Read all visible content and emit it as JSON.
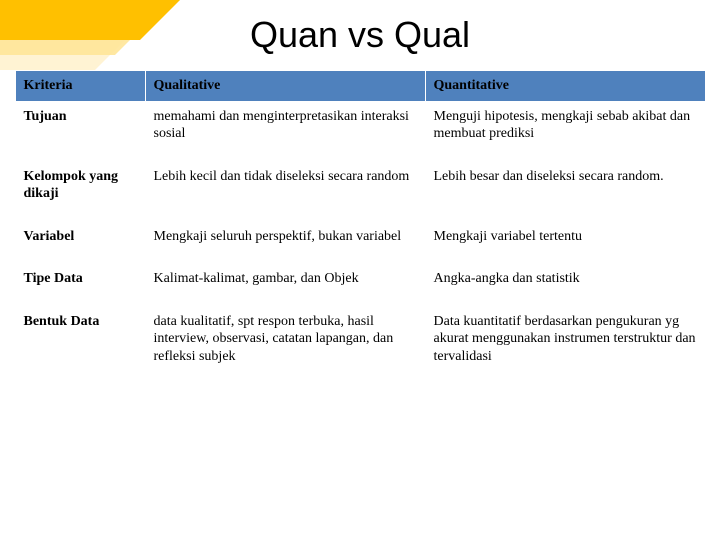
{
  "title": "Quan vs Qual",
  "table": {
    "headers": [
      "Kriteria",
      "Qualitative",
      "Quantitative"
    ],
    "rows": [
      {
        "k": "Tujuan",
        "qual": "memahami dan menginterpretasikan interaksi  sosial",
        "quan": "Menguji hipotesis, mengkaji sebab akibat dan membuat prediksi"
      },
      {
        "k": "Kelompok yang dikaji",
        "qual": "Lebih kecil dan tidak diseleksi secara random",
        "quan": "Lebih besar dan diseleksi secara random."
      },
      {
        "k": "Variabel",
        "qual": "Mengkaji seluruh perspektif, bukan variabel",
        "quan": "Mengkaji variabel tertentu"
      },
      {
        "k": "Tipe  Data",
        "qual": "Kalimat-kalimat, gambar, dan Objek",
        "quan": "Angka-angka dan statistik"
      },
      {
        "k": "Bentuk Data",
        "qual": "data kualitatif, spt respon terbuka, hasil interview, observasi, catatan lapangan, dan refleksi subjek",
        "quan": "Data kuantitatif berdasarkan pengukuran yg akurat menggunakan instrumen terstruktur dan tervalidasi"
      }
    ]
  },
  "colors": {
    "header_bg": "#4f81bd",
    "accent1": "#ffc000",
    "accent2": "#ffe699",
    "accent3": "#fff2cc"
  }
}
